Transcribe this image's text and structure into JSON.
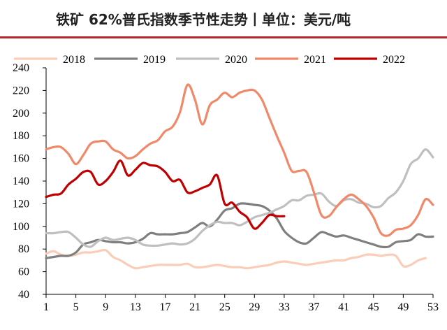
{
  "header": {
    "title": "铁矿 62%普氏指数季节性走势丨单位：美元/吨"
  },
  "chart_data": {
    "type": "line",
    "title": "铁矿 62%普氏指数季节性走势丨单位：美元/吨",
    "xlabel": "",
    "ylabel": "",
    "x_ticks": [
      1,
      5,
      9,
      13,
      17,
      21,
      25,
      29,
      33,
      37,
      41,
      45,
      49,
      53
    ],
    "xlim": [
      1,
      53
    ],
    "ylim": [
      40,
      240
    ],
    "y_ticks": [
      40,
      60,
      80,
      100,
      120,
      140,
      160,
      180,
      200,
      220,
      240
    ],
    "legend_position": "top",
    "grid": false,
    "series": [
      {
        "name": "2018",
        "color": "#f9cdb8",
        "x": [
          1,
          2,
          3,
          4,
          5,
          6,
          7,
          8,
          9,
          10,
          11,
          12,
          13,
          14,
          15,
          16,
          17,
          18,
          19,
          20,
          21,
          22,
          23,
          24,
          25,
          26,
          27,
          28,
          29,
          30,
          31,
          32,
          33,
          34,
          35,
          36,
          37,
          38,
          39,
          40,
          41,
          42,
          43,
          44,
          45,
          46,
          47,
          48,
          49,
          50,
          51,
          52
        ],
        "values": [
          76,
          78,
          75,
          74,
          75,
          77,
          77,
          78,
          79,
          73,
          70,
          66,
          63,
          64,
          65,
          66,
          66,
          66,
          66,
          67,
          64,
          64,
          65,
          66,
          65,
          64,
          64,
          63,
          64,
          65,
          66,
          68,
          69,
          68,
          67,
          66,
          67,
          68,
          69,
          70,
          70,
          72,
          73,
          75,
          75,
          74,
          75,
          74,
          65,
          66,
          70,
          72
        ]
      },
      {
        "name": "2019",
        "color": "#7f7f7f",
        "x": [
          1,
          2,
          3,
          4,
          5,
          6,
          7,
          8,
          9,
          10,
          11,
          12,
          13,
          14,
          15,
          16,
          17,
          18,
          19,
          20,
          21,
          22,
          23,
          24,
          25,
          26,
          27,
          28,
          29,
          30,
          31,
          32,
          33,
          34,
          35,
          36,
          37,
          38,
          39,
          40,
          41,
          42,
          43,
          44,
          45,
          46,
          47,
          48,
          49,
          50,
          51,
          52,
          53
        ],
        "values": [
          72,
          73,
          74,
          74,
          77,
          84,
          86,
          88,
          87,
          86,
          86,
          85,
          86,
          89,
          94,
          93,
          93,
          93,
          94,
          95,
          99,
          103,
          100,
          106,
          114,
          116,
          120,
          120,
          119,
          118,
          114,
          107,
          96,
          90,
          86,
          85,
          90,
          95,
          93,
          91,
          92,
          90,
          88,
          86,
          84,
          82,
          82,
          86,
          87,
          88,
          93,
          91,
          91
        ]
      },
      {
        "name": "2020",
        "color": "#bfbfbf",
        "x": [
          1,
          2,
          3,
          4,
          5,
          6,
          7,
          8,
          9,
          10,
          11,
          12,
          13,
          14,
          15,
          16,
          17,
          18,
          19,
          20,
          21,
          22,
          23,
          24,
          25,
          26,
          27,
          28,
          29,
          30,
          31,
          32,
          33,
          34,
          35,
          36,
          37,
          38,
          39,
          40,
          41,
          42,
          43,
          44,
          45,
          46,
          47,
          48,
          49,
          50,
          51,
          52,
          53
        ],
        "values": [
          94,
          94,
          95,
          95,
          90,
          84,
          82,
          87,
          90,
          88,
          89,
          90,
          88,
          84,
          83,
          83,
          84,
          85,
          84,
          85,
          89,
          96,
          101,
          104,
          103,
          103,
          101,
          104,
          108,
          110,
          112,
          115,
          118,
          123,
          123,
          127,
          128,
          129,
          122,
          118,
          123,
          124,
          121,
          120,
          117,
          118,
          125,
          130,
          140,
          155,
          160,
          168,
          161
        ]
      },
      {
        "name": "2021",
        "color": "#f0896a",
        "x": [
          1,
          2,
          3,
          4,
          5,
          6,
          7,
          8,
          9,
          10,
          11,
          12,
          13,
          14,
          15,
          16,
          17,
          18,
          19,
          20,
          21,
          22,
          23,
          24,
          25,
          26,
          27,
          28,
          29,
          30,
          31,
          32,
          33,
          34,
          35,
          36,
          37,
          38,
          39,
          40,
          41,
          42,
          43,
          44,
          45,
          46,
          47,
          48,
          49,
          50,
          51,
          52,
          53
        ],
        "values": [
          168,
          170,
          170,
          164,
          155,
          163,
          173,
          175,
          175,
          168,
          165,
          160,
          162,
          168,
          173,
          176,
          184,
          188,
          201,
          225,
          212,
          190,
          207,
          212,
          218,
          214,
          218,
          220,
          220,
          212,
          196,
          180,
          165,
          149,
          149,
          148,
          130,
          110,
          109,
          117,
          124,
          128,
          124,
          118,
          108,
          94,
          92,
          97,
          98,
          101,
          110,
          124,
          119
        ]
      },
      {
        "name": "2022",
        "color": "#c00000",
        "x": [
          1,
          2,
          3,
          4,
          5,
          6,
          7,
          8,
          9,
          10,
          11,
          12,
          13,
          14,
          15,
          16,
          17,
          18,
          19,
          20,
          21,
          22,
          23,
          24,
          25,
          26,
          27,
          28,
          29,
          30,
          31,
          32,
          33
        ],
        "values": [
          126,
          128,
          129,
          137,
          142,
          148,
          148,
          137,
          140,
          148,
          158,
          145,
          150,
          156,
          154,
          153,
          148,
          140,
          141,
          130,
          131,
          134,
          137,
          145,
          120,
          121,
          113,
          108,
          98,
          103,
          110,
          109,
          109
        ]
      }
    ]
  }
}
